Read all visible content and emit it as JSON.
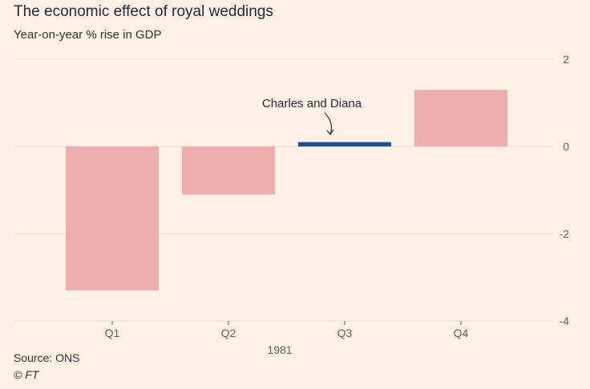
{
  "chart_data": {
    "type": "bar",
    "title": "The economic effect of royal weddings",
    "subtitle": "Year-on-year % rise in GDP",
    "categories": [
      "Q1",
      "Q2",
      "Q3",
      "Q4"
    ],
    "values": [
      -3.3,
      -1.1,
      0.1,
      1.3
    ],
    "highlight_index": 2,
    "xlabel": "1981",
    "ylabel": "",
    "ylim": [
      -4,
      2
    ],
    "yticks": [
      2,
      0,
      -2,
      -4
    ],
    "annotation": {
      "text": "Charles and Diana",
      "category": "Q3"
    },
    "colors": {
      "bar": "#eeaeae",
      "highlight": "#1d5097",
      "grid": "#e6d9ce",
      "axis_text": "#66605c",
      "background": "#fff1e5"
    },
    "grid": true
  },
  "footer": {
    "source": "Source: ONS",
    "copyright": "© FT"
  }
}
